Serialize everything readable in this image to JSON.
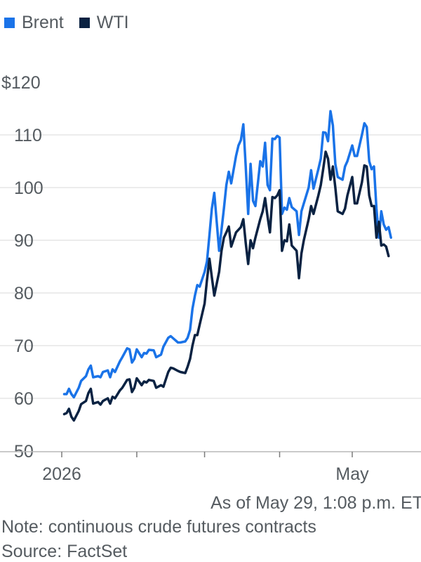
{
  "legend": [
    {
      "name": "Brent",
      "color": "#1a73e8"
    },
    {
      "name": "WTI",
      "color": "#0a2242"
    }
  ],
  "footer": {
    "asof": "As of May 29, 1:08 p.m. ET",
    "note": "Note: continuous crude futures contracts",
    "source": "Source: FactSet"
  },
  "chart_data": {
    "type": "line",
    "ylim": [
      45,
      120
    ],
    "yticks": [
      {
        "value": 120,
        "label": "$120"
      },
      {
        "value": 110,
        "label": "110"
      },
      {
        "value": 100,
        "label": "100"
      },
      {
        "value": 90,
        "label": "90"
      },
      {
        "value": 80,
        "label": "80"
      },
      {
        "value": 70,
        "label": "70"
      },
      {
        "value": 60,
        "label": "60"
      },
      {
        "value": 50,
        "label": "50"
      }
    ],
    "xlim": [
      "2026-01-01",
      "2026-05-29"
    ],
    "xticks": [
      {
        "date": "2026-01-01",
        "label": "2026"
      },
      {
        "date": "2026-02-01",
        "label": ""
      },
      {
        "date": "2026-03-01",
        "label": ""
      },
      {
        "date": "2026-04-01",
        "label": ""
      },
      {
        "date": "2026-05-01",
        "label": "May"
      }
    ],
    "grid": true,
    "legend_position": "top-left",
    "series": [
      {
        "name": "Brent",
        "color": "#1a73e8",
        "points": [
          [
            "2026-01-02",
            60.8
          ],
          [
            "2026-01-03",
            60.8
          ],
          [
            "2026-01-04",
            61.8
          ],
          [
            "2026-01-05",
            60.8
          ],
          [
            "2026-01-06",
            60.2
          ],
          [
            "2026-01-08",
            62.0
          ],
          [
            "2026-01-09",
            63.3
          ],
          [
            "2026-01-11",
            64.2
          ],
          [
            "2026-01-12",
            65.5
          ],
          [
            "2026-01-13",
            66.2
          ],
          [
            "2026-01-14",
            64.0
          ],
          [
            "2026-01-16",
            64.2
          ],
          [
            "2026-01-17",
            64.0
          ],
          [
            "2026-01-18",
            65.0
          ],
          [
            "2026-01-20",
            65.3
          ],
          [
            "2026-01-21",
            64.0
          ],
          [
            "2026-01-22",
            65.5
          ],
          [
            "2026-01-23",
            65.0
          ],
          [
            "2026-01-25",
            67.0
          ],
          [
            "2026-01-26",
            67.8
          ],
          [
            "2026-01-28",
            69.5
          ],
          [
            "2026-01-29",
            69.3
          ],
          [
            "2026-01-30",
            66.8
          ],
          [
            "2026-01-31",
            67.5
          ],
          [
            "2026-02-01",
            69.3
          ],
          [
            "2026-02-03",
            67.8
          ],
          [
            "2026-02-04",
            68.6
          ],
          [
            "2026-02-05",
            68.5
          ],
          [
            "2026-02-06",
            69.2
          ],
          [
            "2026-02-08",
            69.1
          ],
          [
            "2026-02-09",
            67.8
          ],
          [
            "2026-02-11",
            68.3
          ],
          [
            "2026-02-12",
            69.8
          ],
          [
            "2026-02-14",
            71.5
          ],
          [
            "2026-02-15",
            71.8
          ],
          [
            "2026-02-16",
            71.4
          ],
          [
            "2026-02-18",
            70.6
          ],
          [
            "2026-02-19",
            70.6
          ],
          [
            "2026-02-21",
            70.8
          ],
          [
            "2026-02-22",
            71.5
          ],
          [
            "2026-02-23",
            73.0
          ],
          [
            "2026-02-24",
            77.0
          ],
          [
            "2026-02-25",
            79.5
          ],
          [
            "2026-02-26",
            81.5
          ],
          [
            "2026-02-27",
            81.2
          ],
          [
            "2026-03-01",
            84.0
          ],
          [
            "2026-03-02",
            86.0
          ],
          [
            "2026-03-03",
            91.0
          ],
          [
            "2026-03-04",
            96.0
          ],
          [
            "2026-03-05",
            99.0
          ],
          [
            "2026-03-07",
            88.0
          ],
          [
            "2026-03-08",
            92.0
          ],
          [
            "2026-03-09",
            96.0
          ],
          [
            "2026-03-10",
            100.5
          ],
          [
            "2026-03-11",
            103.0
          ],
          [
            "2026-03-12",
            100.8
          ],
          [
            "2026-03-14",
            106.0
          ],
          [
            "2026-03-15",
            108.0
          ],
          [
            "2026-03-16",
            109.0
          ],
          [
            "2026-03-17",
            112.0
          ],
          [
            "2026-03-18",
            104.0
          ],
          [
            "2026-03-19",
            95.0
          ],
          [
            "2026-03-20",
            104.5
          ],
          [
            "2026-03-21",
            97.5
          ],
          [
            "2026-03-22",
            96.5
          ],
          [
            "2026-03-24",
            105.0
          ],
          [
            "2026-03-25",
            104.0
          ],
          [
            "2026-03-26",
            108.5
          ],
          [
            "2026-03-27",
            100.5
          ],
          [
            "2026-03-28",
            99.5
          ],
          [
            "2026-03-29",
            109.3
          ],
          [
            "2026-03-30",
            109.2
          ],
          [
            "2026-03-31",
            109.8
          ],
          [
            "2026-04-01",
            109.5
          ],
          [
            "2026-04-02",
            95.0
          ],
          [
            "2026-04-03",
            96.2
          ],
          [
            "2026-04-04",
            95.8
          ],
          [
            "2026-04-05",
            98.0
          ],
          [
            "2026-04-06",
            96.3
          ],
          [
            "2026-04-08",
            95.5
          ],
          [
            "2026-04-09",
            91.0
          ],
          [
            "2026-04-10",
            95.5
          ],
          [
            "2026-04-11",
            97.0
          ],
          [
            "2026-04-13",
            100.0
          ],
          [
            "2026-04-14",
            103.3
          ],
          [
            "2026-04-15",
            99.8
          ],
          [
            "2026-04-17",
            103.5
          ],
          [
            "2026-04-18",
            105.5
          ],
          [
            "2026-04-19",
            110.5
          ],
          [
            "2026-04-20",
            110.4
          ],
          [
            "2026-04-21",
            108.8
          ],
          [
            "2026-04-22",
            114.5
          ],
          [
            "2026-04-23",
            111.8
          ],
          [
            "2026-04-24",
            104.5
          ],
          [
            "2026-04-25",
            102.0
          ],
          [
            "2026-04-27",
            101.5
          ],
          [
            "2026-04-28",
            104.0
          ],
          [
            "2026-04-29",
            105.0
          ],
          [
            "2026-05-01",
            108.0
          ],
          [
            "2026-05-02",
            106.0
          ],
          [
            "2026-05-03",
            106.0
          ],
          [
            "2026-05-05",
            110.0
          ],
          [
            "2026-05-06",
            112.2
          ],
          [
            "2026-05-07",
            111.5
          ],
          [
            "2026-05-08",
            105.0
          ],
          [
            "2026-05-09",
            103.5
          ],
          [
            "2026-05-10",
            104.0
          ],
          [
            "2026-05-11",
            96.0
          ],
          [
            "2026-05-12",
            90.5
          ],
          [
            "2026-05-13",
            95.5
          ],
          [
            "2026-05-14",
            93.0
          ],
          [
            "2026-05-15",
            92.0
          ],
          [
            "2026-05-16",
            92.5
          ],
          [
            "2026-05-17",
            90.5
          ]
        ]
      },
      {
        "name": "WTI",
        "color": "#0a2242",
        "points": [
          [
            "2026-01-02",
            57.0
          ],
          [
            "2026-01-03",
            57.2
          ],
          [
            "2026-01-04",
            58.0
          ],
          [
            "2026-01-05",
            56.5
          ],
          [
            "2026-01-06",
            55.8
          ],
          [
            "2026-01-08",
            57.6
          ],
          [
            "2026-01-09",
            58.9
          ],
          [
            "2026-01-11",
            59.5
          ],
          [
            "2026-01-12",
            61.0
          ],
          [
            "2026-01-13",
            61.8
          ],
          [
            "2026-01-14",
            59.0
          ],
          [
            "2026-01-16",
            59.3
          ],
          [
            "2026-01-17",
            58.8
          ],
          [
            "2026-01-18",
            59.5
          ],
          [
            "2026-01-20",
            60.0
          ],
          [
            "2026-01-21",
            59.0
          ],
          [
            "2026-01-22",
            60.3
          ],
          [
            "2026-01-23",
            60.0
          ],
          [
            "2026-01-25",
            61.5
          ],
          [
            "2026-01-26",
            62.0
          ],
          [
            "2026-01-28",
            63.5
          ],
          [
            "2026-01-29",
            63.6
          ],
          [
            "2026-01-30",
            61.2
          ],
          [
            "2026-01-31",
            62.0
          ],
          [
            "2026-02-01",
            63.8
          ],
          [
            "2026-02-03",
            62.5
          ],
          [
            "2026-02-04",
            63.2
          ],
          [
            "2026-02-05",
            63.0
          ],
          [
            "2026-02-06",
            63.5
          ],
          [
            "2026-02-08",
            63.3
          ],
          [
            "2026-02-09",
            62.0
          ],
          [
            "2026-02-11",
            62.5
          ],
          [
            "2026-02-12",
            62.2
          ],
          [
            "2026-02-14",
            65.0
          ],
          [
            "2026-02-15",
            65.8
          ],
          [
            "2026-02-16",
            65.7
          ],
          [
            "2026-02-18",
            65.2
          ],
          [
            "2026-02-19",
            65.0
          ],
          [
            "2026-02-21",
            64.8
          ],
          [
            "2026-02-22",
            66.0
          ],
          [
            "2026-02-23",
            67.5
          ],
          [
            "2026-02-24",
            70.0
          ],
          [
            "2026-02-25",
            72.0
          ],
          [
            "2026-02-26",
            72.0
          ],
          [
            "2026-02-27",
            74.0
          ],
          [
            "2026-03-01",
            78.0
          ],
          [
            "2026-03-02",
            82.5
          ],
          [
            "2026-03-03",
            86.5
          ],
          [
            "2026-03-04",
            83.0
          ],
          [
            "2026-03-05",
            79.5
          ],
          [
            "2026-03-07",
            84.0
          ],
          [
            "2026-03-08",
            88.0
          ],
          [
            "2026-03-09",
            90.5
          ],
          [
            "2026-03-10",
            91.5
          ],
          [
            "2026-03-11",
            92.6
          ],
          [
            "2026-03-12",
            88.8
          ],
          [
            "2026-03-14",
            91.5
          ],
          [
            "2026-03-15",
            92.0
          ],
          [
            "2026-03-16",
            92.5
          ],
          [
            "2026-03-17",
            94.0
          ],
          [
            "2026-03-18",
            89.5
          ],
          [
            "2026-03-19",
            85.5
          ],
          [
            "2026-03-20",
            90.0
          ],
          [
            "2026-03-21",
            88.5
          ],
          [
            "2026-03-22",
            90.5
          ],
          [
            "2026-03-24",
            94.0
          ],
          [
            "2026-03-25",
            95.5
          ],
          [
            "2026-03-26",
            98.0
          ],
          [
            "2026-03-27",
            94.5
          ],
          [
            "2026-03-28",
            91.5
          ],
          [
            "2026-03-29",
            98.2
          ],
          [
            "2026-03-30",
            98.0
          ],
          [
            "2026-03-31",
            98.5
          ],
          [
            "2026-04-01",
            99.5
          ],
          [
            "2026-04-02",
            88.0
          ],
          [
            "2026-04-03",
            90.0
          ],
          [
            "2026-04-04",
            89.8
          ],
          [
            "2026-04-05",
            93.0
          ],
          [
            "2026-04-06",
            89.0
          ],
          [
            "2026-04-08",
            88.0
          ],
          [
            "2026-04-09",
            82.8
          ],
          [
            "2026-04-10",
            87.5
          ],
          [
            "2026-04-11",
            90.0
          ],
          [
            "2026-04-13",
            94.0
          ],
          [
            "2026-04-14",
            96.5
          ],
          [
            "2026-04-15",
            95.0
          ],
          [
            "2026-04-17",
            98.5
          ],
          [
            "2026-04-18",
            100.5
          ],
          [
            "2026-04-19",
            103.5
          ],
          [
            "2026-04-20",
            106.8
          ],
          [
            "2026-04-21",
            105.5
          ],
          [
            "2026-04-22",
            101.5
          ],
          [
            "2026-04-23",
            104.0
          ],
          [
            "2026-04-24",
            100.0
          ],
          [
            "2026-04-25",
            95.5
          ],
          [
            "2026-04-27",
            95.0
          ],
          [
            "2026-04-28",
            96.0
          ],
          [
            "2026-04-29",
            98.5
          ],
          [
            "2026-05-01",
            102.0
          ],
          [
            "2026-05-02",
            97.0
          ],
          [
            "2026-05-03",
            97.0
          ],
          [
            "2026-05-05",
            101.0
          ],
          [
            "2026-05-06",
            104.2
          ],
          [
            "2026-05-07",
            104.0
          ],
          [
            "2026-05-08",
            98.5
          ],
          [
            "2026-05-09",
            96.5
          ],
          [
            "2026-05-10",
            96.5
          ],
          [
            "2026-05-11",
            90.5
          ],
          [
            "2026-05-12",
            93.5
          ],
          [
            "2026-05-13",
            89.0
          ],
          [
            "2026-05-14",
            89.2
          ],
          [
            "2026-05-15",
            88.8
          ],
          [
            "2026-05-16",
            87.0
          ]
        ]
      }
    ]
  }
}
